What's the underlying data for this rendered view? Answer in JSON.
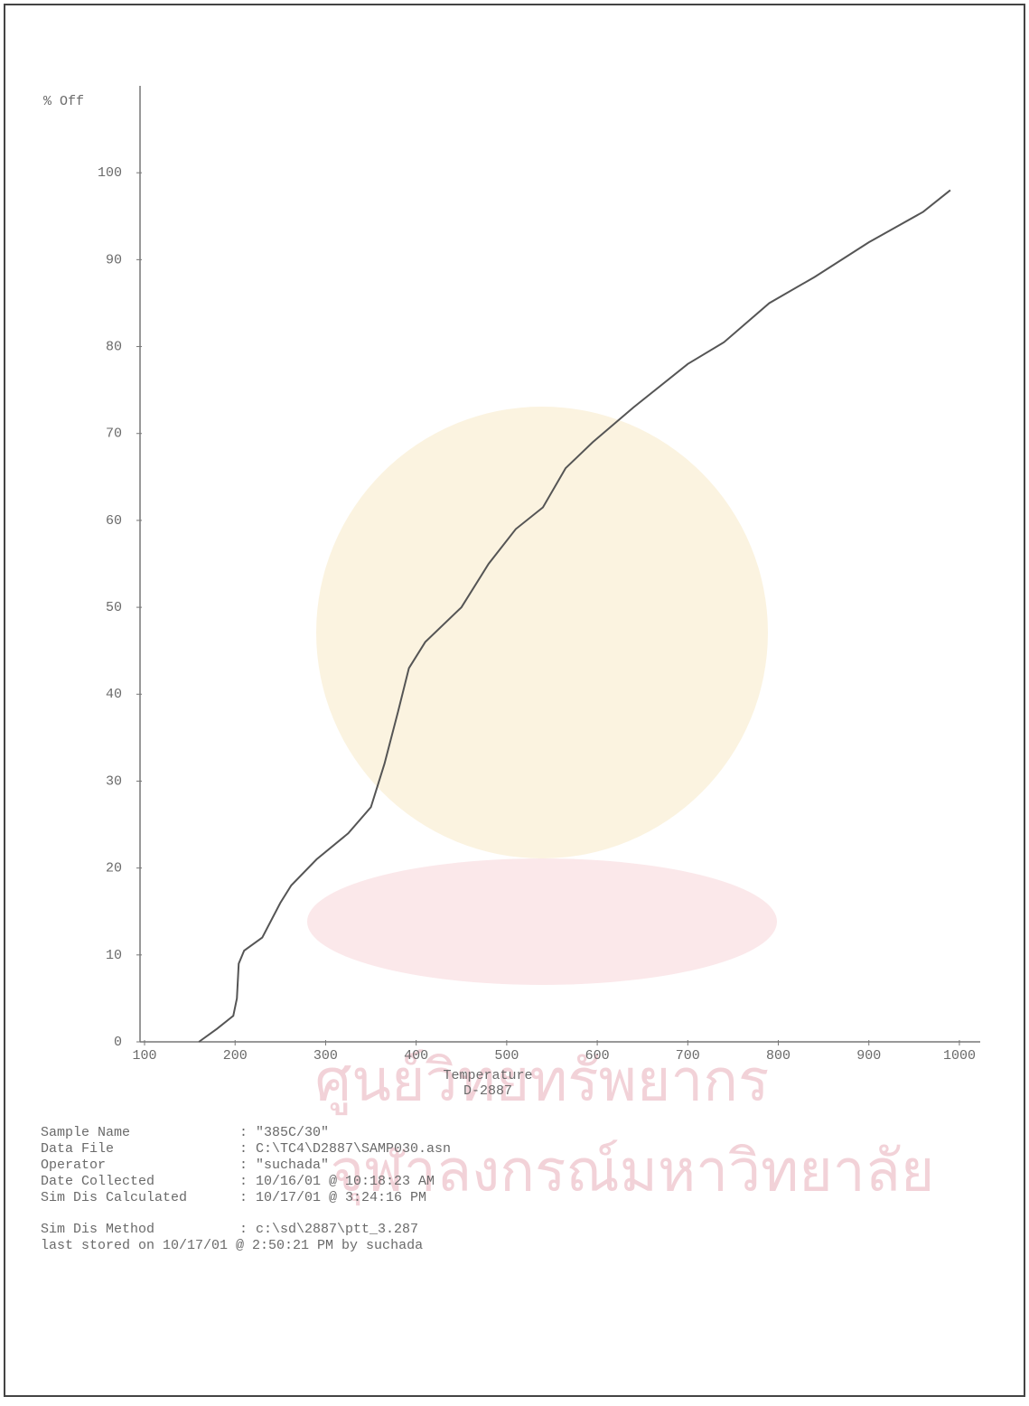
{
  "chart_data": {
    "type": "line",
    "y_label": "% Off",
    "x_label": "Temperature",
    "x_sublabel": "D-2887",
    "x": [
      160,
      180,
      198,
      202,
      204,
      210,
      230,
      250,
      262,
      290,
      325,
      350,
      365,
      380,
      392,
      410,
      450,
      480,
      510,
      540,
      565,
      595,
      640,
      700,
      740,
      790,
      840,
      900,
      960,
      990
    ],
    "series": [
      {
        "name": "% Off",
        "color": "#555555",
        "values": [
          0,
          1.5,
          3,
          5,
          9,
          10.5,
          12,
          16,
          18,
          21,
          24,
          27,
          32,
          38,
          43,
          46,
          50,
          55,
          59,
          61.5,
          66,
          69,
          73,
          78,
          80.5,
          85,
          88,
          92,
          95.5,
          98
        ]
      }
    ],
    "xlim": [
      95,
      1023
    ],
    "xticks": [
      100,
      200,
      300,
      400,
      500,
      600,
      700,
      800,
      900,
      1000
    ],
    "ylim": [
      0,
      110
    ],
    "yticks": [
      0,
      10,
      20,
      30,
      40,
      50,
      60,
      70,
      80,
      90,
      100
    ],
    "grid": false
  },
  "info": [
    {
      "label": "Sample Name",
      "value": ": \"385C/30\""
    },
    {
      "label": "Data File",
      "value": ": C:\\TC4\\D2887\\SAMP030.asn"
    },
    {
      "label": "Operator",
      "value": ": \"suchada\""
    },
    {
      "label": "Date Collected",
      "value": ": 10/16/01 @ 10:18:23 AM"
    },
    {
      "label": "Sim Dis Calculated",
      "value": ": 10/17/01 @ 3:24:16 PM"
    }
  ],
  "method": {
    "label": "Sim Dis Method",
    "value": ": c:\\sd\\2887\\ptt_3.287"
  },
  "stored": "last stored on 10/17/01 @ 2:50:21 PM by suchada",
  "watermark": [
    "ศูนย์วิทยทรัพยากร",
    "จุฬาลงกรณ์มหาวิทยาลัย"
  ]
}
